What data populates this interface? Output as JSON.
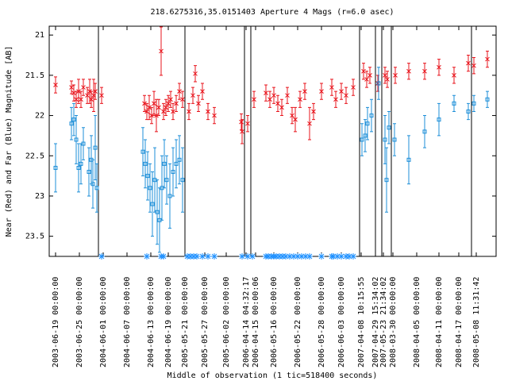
{
  "chart_data": {
    "type": "scatter",
    "title": "218.6275316,35.0151403    Aperture 4 Mags (r=6.0 asec)",
    "xlabel": "Middle of observation (1 tic=518400 seconds)",
    "ylabel": "Near (Red) and Far (Blue) Magnitude [AB]",
    "xlim": [
      0,
      112.6
    ],
    "ylim": [
      20.89,
      23.75
    ],
    "y_inverted": true,
    "yticks": [
      21,
      21.5,
      22,
      22.5,
      23,
      23.5
    ],
    "xticks": [
      {
        "value": 1.6,
        "label": "2003-06-19 00:00:00"
      },
      {
        "value": 7.6,
        "label": "2003-06-25 00:00:00"
      },
      {
        "value": 13.6,
        "label": "2004-06-01 00:00:00"
      },
      {
        "value": 19.6,
        "label": "2004-06-07 00:00:00"
      },
      {
        "value": 25.6,
        "label": "2004-06-13 00:00:00"
      },
      {
        "value": 30,
        "label": "2004-06-19 00:00:00"
      },
      {
        "value": 34.2,
        "label": "2005-05-21 00:00:00"
      },
      {
        "value": 39.2,
        "label": "2005-05-27 00:00:00"
      },
      {
        "value": 44.6,
        "label": "2005-06-02 00:00:00"
      },
      {
        "value": 49.6,
        "label": "2006-04-14 04:32:17"
      },
      {
        "value": 52,
        "label": "2006-04-15 00:00:06"
      },
      {
        "value": 56.6,
        "label": "2006-05-16 00:00:00"
      },
      {
        "value": 62.6,
        "label": "2006-05-22 00:00:00"
      },
      {
        "value": 68.6,
        "label": "2006-05-28 00:00:00"
      },
      {
        "value": 73.6,
        "label": "2006-06-03 00:00:00"
      },
      {
        "value": 78.6,
        "label": "2007-04-08 10:15:55"
      },
      {
        "value": 82.2,
        "label": "2007-04-29 15:34:02"
      },
      {
        "value": 84.2,
        "label": "2007-05-23 21:34:02"
      },
      {
        "value": 86.6,
        "label": "2008-03-30 00:00:00"
      },
      {
        "value": 92.6,
        "label": "2008-04-05 00:00:00"
      },
      {
        "value": 98.2,
        "label": "2008-04-11 00:00:00"
      },
      {
        "value": 103.2,
        "label": "2008-04-17 00:00:00"
      },
      {
        "value": 107.6,
        "label": "2008-05-08 11:31:42"
      }
    ],
    "breaks": [
      12.4,
      34.2,
      49.2,
      50.8,
      78.2,
      82.2,
      83.8,
      86.2,
      106.4
    ],
    "lower_limits": {
      "color": "#1e90ff",
      "x": [
        13.2,
        24.6,
        28.2,
        28.8,
        34.8,
        35.6,
        36.4,
        37.2,
        38.6,
        40,
        41.6,
        48.6,
        50,
        51.2,
        54.6,
        55.2,
        56,
        56.6,
        57.2,
        58,
        58.8,
        59.6,
        60.6,
        61.6,
        62.6,
        63.6,
        64.6,
        65.6,
        68.6,
        71.2,
        71.6,
        72.6,
        73.6,
        74.8,
        75.6,
        76.6
      ]
    },
    "series": [
      {
        "marker": "cross",
        "color": "#e8141c",
        "x": [
          1.6,
          5.6,
          6.2,
          6.8,
          7.4,
          8,
          8.6,
          9.6,
          10.2,
          10.6,
          11.2,
          11.6,
          13.2,
          24,
          24.6,
          25.2,
          25.8,
          26.4,
          27,
          27.6,
          28.2,
          28.8,
          29.4,
          30,
          30.6,
          31.2,
          32,
          32.8,
          33.6,
          35.2,
          36.2,
          36.8,
          37.6,
          38.6,
          40,
          41.6,
          48.4,
          48.6,
          50,
          51.6,
          54.6,
          55.6,
          56.6,
          57.6,
          58.6,
          60,
          61.2,
          62,
          63.2,
          64.4,
          65.6,
          66.6,
          68.6,
          71.2,
          72.2,
          73.6,
          74.8,
          76.6,
          79.2,
          80,
          80.8,
          82.8,
          84.6,
          85.2,
          87.2,
          90.6,
          94.6,
          98.2,
          102,
          105.6,
          107,
          110.4
        ],
        "values": [
          21.62,
          21.65,
          21.72,
          21.8,
          21.7,
          21.8,
          21.65,
          21.75,
          21.7,
          21.8,
          21.75,
          21.7,
          21.75,
          21.85,
          21.95,
          21.9,
          22.0,
          21.85,
          22.0,
          21.9,
          21.2,
          21.95,
          21.9,
          21.85,
          21.8,
          21.95,
          21.85,
          21.7,
          21.8,
          21.95,
          21.75,
          21.48,
          21.85,
          21.7,
          21.95,
          22.0,
          22.08,
          22.2,
          22.1,
          21.8,
          21.72,
          21.8,
          21.75,
          21.85,
          21.9,
          21.75,
          22.0,
          22.05,
          21.8,
          21.7,
          22.1,
          21.95,
          21.7,
          21.65,
          21.8,
          21.7,
          21.75,
          21.65,
          21.45,
          21.55,
          21.5,
          21.6,
          21.5,
          21.55,
          21.5,
          21.45,
          21.45,
          21.4,
          21.5,
          21.35,
          21.38,
          21.3
        ],
        "errors": [
          0.1,
          0.08,
          0.1,
          0.1,
          0.15,
          0.1,
          0.1,
          0.1,
          0.15,
          0.1,
          0.2,
          0.1,
          0.1,
          0.1,
          0.1,
          0.15,
          0.1,
          0.15,
          0.2,
          0.1,
          0.3,
          0.1,
          0.1,
          0.1,
          0.1,
          0.1,
          0.1,
          0.1,
          0.1,
          0.1,
          0.1,
          0.1,
          0.1,
          0.1,
          0.1,
          0.1,
          0.1,
          0.15,
          0.1,
          0.1,
          0.1,
          0.1,
          0.1,
          0.1,
          0.1,
          0.1,
          0.1,
          0.15,
          0.1,
          0.1,
          0.2,
          0.1,
          0.1,
          0.1,
          0.1,
          0.1,
          0.1,
          0.1,
          0.1,
          0.1,
          0.1,
          0.1,
          0.1,
          0.1,
          0.1,
          0.1,
          0.1,
          0.1,
          0.1,
          0.1,
          0.1,
          0.1
        ]
      },
      {
        "marker": "square",
        "color": "#1e8fd8",
        "x": [
          1.6,
          5.6,
          6.2,
          6.8,
          7.4,
          8,
          8.6,
          10,
          10.6,
          11,
          11.6,
          12,
          23.6,
          24.2,
          24.8,
          25.4,
          26,
          26.6,
          27.2,
          27.8,
          28.4,
          29,
          29.6,
          30.4,
          31.2,
          32,
          32.8,
          33.6,
          78.8,
          79.6,
          80.2,
          81.2,
          83,
          84.6,
          85,
          85.6,
          87,
          90.6,
          94.6,
          98.2,
          102,
          105.6,
          107,
          110.4
        ],
        "values": [
          22.65,
          22.1,
          22.05,
          22.3,
          22.65,
          22.6,
          22.35,
          22.7,
          22.55,
          22.85,
          22.4,
          22.9,
          22.45,
          22.6,
          22.75,
          22.9,
          23.1,
          22.8,
          23.2,
          23.3,
          22.9,
          22.6,
          22.8,
          23.0,
          22.7,
          22.6,
          22.55,
          22.8,
          22.3,
          22.25,
          22.1,
          22.0,
          21.6,
          22.3,
          22.8,
          22.15,
          22.3,
          22.55,
          22.2,
          22.05,
          21.85,
          21.95,
          21.85,
          21.8
        ],
        "errors": [
          0.3,
          0.2,
          0.2,
          0.3,
          0.3,
          0.25,
          0.2,
          0.3,
          0.3,
          0.3,
          0.4,
          0.3,
          0.3,
          0.3,
          0.3,
          0.3,
          0.4,
          0.4,
          0.4,
          0.4,
          0.4,
          0.3,
          0.3,
          0.4,
          0.3,
          0.3,
          0.3,
          0.4,
          0.2,
          0.2,
          0.2,
          0.2,
          0.2,
          0.3,
          0.4,
          0.2,
          0.2,
          0.3,
          0.2,
          0.2,
          0.1,
          0.1,
          0.1,
          0.1
        ]
      }
    ]
  }
}
